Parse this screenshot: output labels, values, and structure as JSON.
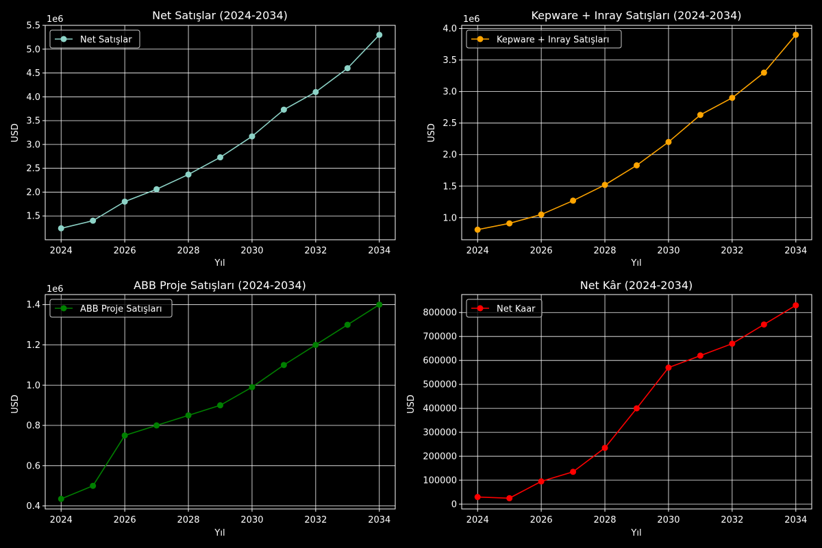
{
  "figure": {
    "background": "#000000"
  },
  "chart_data": [
    {
      "type": "line",
      "title": "Net Satışlar (2024-2034)",
      "xlabel": "Yıl",
      "ylabel": "USD",
      "offset_label": "1e6",
      "scale": 1000000,
      "x": [
        2024,
        2025,
        2026,
        2027,
        2028,
        2029,
        2030,
        2031,
        2032,
        2033,
        2034
      ],
      "xlim": [
        2023.5,
        2034.5
      ],
      "xticks": [
        2024,
        2026,
        2028,
        2030,
        2032,
        2034
      ],
      "xtick_labels": [
        "2024",
        "2026",
        "2028",
        "2030",
        "2032",
        "2034"
      ],
      "ylim": [
        1.0,
        5.5
      ],
      "yticks": [
        1.5,
        2.0,
        2.5,
        3.0,
        3.5,
        4.0,
        4.5,
        5.0,
        5.5
      ],
      "ytick_labels": [
        "1.5",
        "2.0",
        "2.5",
        "3.0",
        "3.5",
        "4.0",
        "4.5",
        "5.0",
        "5.5"
      ],
      "grid": true,
      "legend": "top-left",
      "series": [
        {
          "name": "Net Satışlar",
          "color": "#8dd3c7",
          "values": [
            1.24,
            1.4,
            1.8,
            2.06,
            2.37,
            2.73,
            3.17,
            3.73,
            4.1,
            4.6,
            5.3
          ]
        }
      ]
    },
    {
      "type": "line",
      "title": "Kepware + Inray Satışları (2024-2034)",
      "xlabel": "Yıl",
      "ylabel": "USD",
      "offset_label": "1e6",
      "scale": 1000000,
      "x": [
        2024,
        2025,
        2026,
        2027,
        2028,
        2029,
        2030,
        2031,
        2032,
        2033,
        2034
      ],
      "xlim": [
        2023.5,
        2034.5
      ],
      "xticks": [
        2024,
        2026,
        2028,
        2030,
        2032,
        2034
      ],
      "xtick_labels": [
        "2024",
        "2026",
        "2028",
        "2030",
        "2032",
        "2034"
      ],
      "ylim": [
        0.65,
        4.05
      ],
      "yticks": [
        1.0,
        1.5,
        2.0,
        2.5,
        3.0,
        3.5,
        4.0
      ],
      "ytick_labels": [
        "1.0",
        "1.5",
        "2.0",
        "2.5",
        "3.0",
        "3.5",
        "4.0"
      ],
      "grid": true,
      "legend": "top-left",
      "series": [
        {
          "name": "Kepware + Inray Satışları",
          "color": "#ffa500",
          "values": [
            0.81,
            0.91,
            1.05,
            1.27,
            1.52,
            1.83,
            2.2,
            2.63,
            2.9,
            3.3,
            3.9
          ]
        }
      ]
    },
    {
      "type": "line",
      "title": "ABB Proje Satışları (2024-2034)",
      "xlabel": "Yıl",
      "ylabel": "USD",
      "offset_label": "1e6",
      "scale": 1000000,
      "x": [
        2024,
        2025,
        2026,
        2027,
        2028,
        2029,
        2030,
        2031,
        2032,
        2033,
        2034
      ],
      "xlim": [
        2023.5,
        2034.5
      ],
      "xticks": [
        2024,
        2026,
        2028,
        2030,
        2032,
        2034
      ],
      "xtick_labels": [
        "2024",
        "2026",
        "2028",
        "2030",
        "2032",
        "2034"
      ],
      "ylim": [
        0.385,
        1.45
      ],
      "yticks": [
        0.4,
        0.6,
        0.8,
        1.0,
        1.2,
        1.4
      ],
      "ytick_labels": [
        "0.4",
        "0.6",
        "0.8",
        "1.0",
        "1.2",
        "1.4"
      ],
      "grid": true,
      "legend": "top-left",
      "series": [
        {
          "name": "ABB Proje Satışları",
          "color": "#008000",
          "values": [
            0.435,
            0.5,
            0.75,
            0.8,
            0.85,
            0.9,
            0.99,
            1.1,
            1.2,
            1.3,
            1.4
          ]
        }
      ]
    },
    {
      "type": "line",
      "title": "Net Kâr (2024-2034)",
      "xlabel": "Yıl",
      "ylabel": "USD",
      "offset_label": "",
      "scale": 1,
      "x": [
        2024,
        2025,
        2026,
        2027,
        2028,
        2029,
        2030,
        2031,
        2032,
        2033,
        2034
      ],
      "xlim": [
        2023.5,
        2034.5
      ],
      "xticks": [
        2024,
        2026,
        2028,
        2030,
        2032,
        2034
      ],
      "xtick_labels": [
        "2024",
        "2026",
        "2028",
        "2030",
        "2032",
        "2034"
      ],
      "ylim": [
        -20000,
        875000
      ],
      "yticks": [
        0,
        100000,
        200000,
        300000,
        400000,
        500000,
        600000,
        700000,
        800000
      ],
      "ytick_labels": [
        "0",
        "100000",
        "200000",
        "300000",
        "400000",
        "500000",
        "600000",
        "700000",
        "800000"
      ],
      "grid": true,
      "legend": "top-left",
      "series": [
        {
          "name": "Net Kaar",
          "color": "#ff0000",
          "values": [
            30000,
            25000,
            95000,
            135000,
            235000,
            400000,
            570000,
            620000,
            670000,
            750000,
            830000
          ]
        }
      ]
    }
  ]
}
